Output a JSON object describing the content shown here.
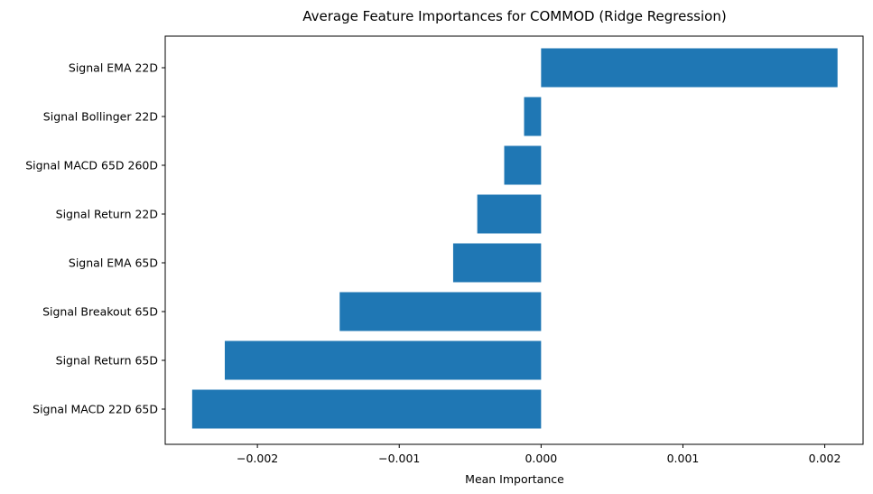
{
  "chart_data": {
    "type": "bar",
    "orientation": "horizontal",
    "title": "Average Feature Importances for COMMOD (Ridge Regression)",
    "xlabel": "Mean Importance",
    "ylabel": "",
    "categories": [
      "Signal EMA 22D",
      "Signal Bollinger 22D",
      "Signal MACD 65D 260D",
      "Signal Return 22D",
      "Signal EMA 65D",
      "Signal Breakout 65D",
      "Signal Return 65D",
      "Signal MACD 22D 65D"
    ],
    "values": [
      0.00209,
      -0.00012,
      -0.00026,
      -0.00045,
      -0.00062,
      -0.00142,
      -0.00223,
      -0.00246
    ],
    "xlim": [
      -0.00265,
      0.00227
    ],
    "xticks": [
      -0.002,
      -0.001,
      0.0,
      0.001,
      0.002
    ],
    "xtick_labels": [
      "−0.002",
      "−0.001",
      "0.000",
      "0.001",
      "0.002"
    ],
    "bar_color": "#1f77b4",
    "grid": false,
    "legend": "none"
  }
}
